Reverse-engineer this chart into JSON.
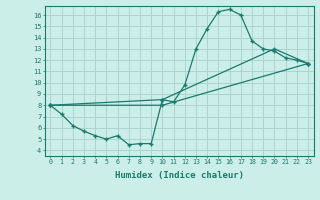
{
  "xlabel": "Humidex (Indice chaleur)",
  "background_color": "#cceee8",
  "grid_color": "#aad4ce",
  "line_color": "#1a7a6e",
  "xlim": [
    -0.5,
    23.5
  ],
  "ylim": [
    3.5,
    16.8
  ],
  "yticks": [
    4,
    5,
    6,
    7,
    8,
    9,
    10,
    11,
    12,
    13,
    14,
    15,
    16
  ],
  "xticks": [
    0,
    1,
    2,
    3,
    4,
    5,
    6,
    7,
    8,
    9,
    10,
    11,
    12,
    13,
    14,
    15,
    16,
    17,
    18,
    19,
    20,
    21,
    22,
    23
  ],
  "xtick_labels": [
    "0",
    "1",
    "2",
    "3",
    "4",
    "5",
    "6",
    "7",
    "8",
    "9",
    "10",
    "11",
    "12",
    "13",
    "14",
    "15",
    "16",
    "17",
    "18",
    "19",
    "20",
    "21",
    "22",
    "23"
  ],
  "series1_x": [
    0,
    1,
    2,
    3,
    4,
    5,
    6,
    7,
    8,
    9,
    10,
    11,
    12,
    13,
    14,
    15,
    16,
    17,
    18,
    19,
    20,
    21,
    22,
    23
  ],
  "series1_y": [
    8.0,
    7.2,
    6.2,
    5.7,
    5.3,
    5.0,
    5.3,
    4.5,
    4.6,
    4.6,
    8.5,
    8.3,
    9.8,
    13.0,
    14.8,
    16.3,
    16.5,
    16.0,
    13.7,
    13.0,
    12.8,
    12.2,
    12.0,
    11.7
  ],
  "series2_x": [
    0,
    10,
    23
  ],
  "series2_y": [
    8.0,
    8.0,
    11.7
  ],
  "series3_x": [
    0,
    10,
    20,
    23
  ],
  "series3_y": [
    8.0,
    8.5,
    13.0,
    11.7
  ]
}
